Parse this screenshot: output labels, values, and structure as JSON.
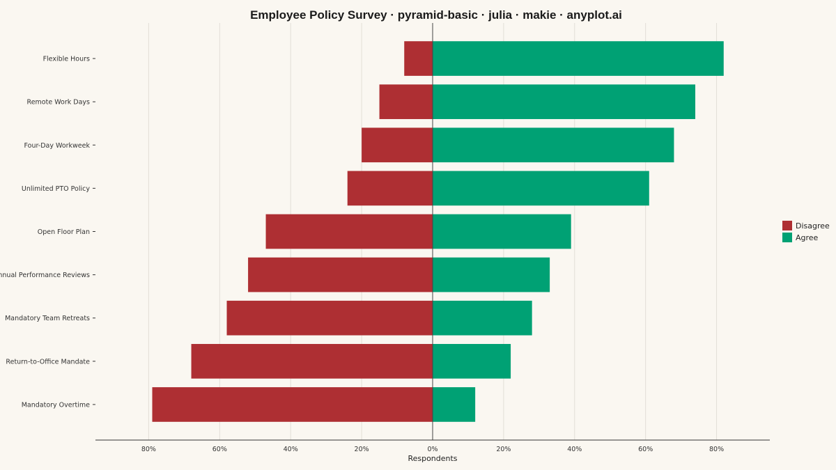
{
  "chart_data": {
    "type": "bar",
    "orientation": "horizontal",
    "layout": "diverging",
    "title": "Employee Policy Survey · pyramid-basic · julia · makie · anyplot.ai",
    "xlabel": "Respondents",
    "ylabel": "",
    "categories": [
      "Flexible Hours",
      "Remote Work Days",
      "Four-Day Workweek",
      "Unlimited PTO Policy",
      "Open Floor Plan",
      "Annual Performance Reviews",
      "Mandatory Team Retreats",
      "Return-to-Office Mandate",
      "Mandatory Overtime"
    ],
    "series": [
      {
        "name": "Disagree",
        "side": "left",
        "color": "#AE2F33",
        "values": [
          8,
          15,
          20,
          24,
          47,
          52,
          58,
          68,
          79
        ]
      },
      {
        "name": "Agree",
        "side": "right",
        "color": "#00A174",
        "values": [
          82,
          74,
          68,
          61,
          39,
          33,
          28,
          22,
          12
        ]
      }
    ],
    "xlim": [
      -95,
      95
    ],
    "xticks": [
      -80,
      -60,
      -40,
      -20,
      0,
      20,
      40,
      60,
      80
    ],
    "xtick_labels": [
      "80%",
      "60%",
      "40%",
      "20%",
      "0%",
      "20%",
      "40%",
      "60%",
      "80%"
    ],
    "grid": true,
    "legend_position": "right"
  }
}
